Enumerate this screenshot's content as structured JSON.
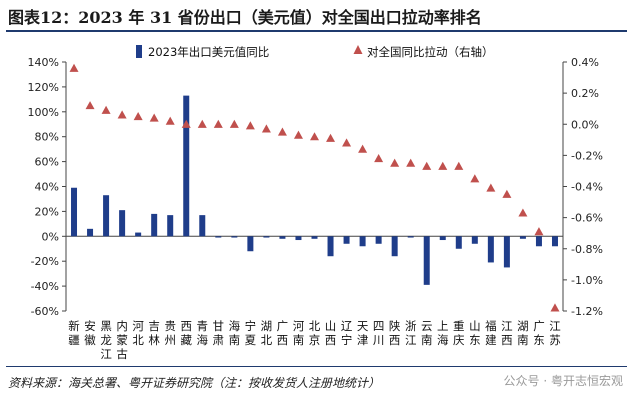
{
  "page": {
    "title": "图表12：2023 年 31 省份出口（美元值）对全国出口拉动率排名",
    "source": "资料来源：海关总署、粤开证券研究院（注：按收发货人注册地统计）",
    "watermark": "公众号 · 粤开志恒宏观"
  },
  "chart_data": {
    "type": "bar",
    "categories": [
      "新疆",
      "安徽",
      "黑龙江",
      "内蒙古",
      "河北",
      "吉林",
      "贵州",
      "西藏",
      "青海",
      "甘肃",
      "海南",
      "宁夏",
      "湖北",
      "广西",
      "河南",
      "北京",
      "山西",
      "辽宁",
      "天津",
      "四川",
      "陕西",
      "浙江",
      "云南",
      "上海",
      "重庆",
      "山东",
      "福建",
      "江西",
      "湖南",
      "广东",
      "江苏"
    ],
    "series": [
      {
        "name": "2023年出口美元值同比",
        "axis": "left",
        "type": "bar",
        "color": "#1f3d8a",
        "values": [
          39,
          6,
          33,
          21,
          3,
          18,
          17,
          113,
          17,
          -1,
          -1,
          -12,
          -1,
          -2,
          -3,
          -2,
          -16,
          -6,
          -8,
          -6,
          -16,
          -1,
          -39,
          -3,
          -10,
          -6,
          -21,
          -25,
          -2,
          -8,
          -8
        ]
      },
      {
        "name": "对全国同比拉动（右轴）",
        "axis": "right",
        "type": "scatter",
        "color": "#c0504d",
        "values": [
          0.36,
          0.12,
          0.09,
          0.06,
          0.05,
          0.04,
          0.02,
          0.0,
          0.0,
          0.0,
          0.0,
          -0.01,
          -0.03,
          -0.05,
          -0.07,
          -0.08,
          -0.09,
          -0.12,
          -0.16,
          -0.22,
          -0.25,
          -0.25,
          -0.27,
          -0.27,
          -0.27,
          -0.35,
          -0.41,
          -0.45,
          -0.57,
          -0.69,
          -1.18
        ]
      }
    ],
    "y_left": {
      "min": -60,
      "max": 140,
      "step": 20,
      "ticks": [
        "-60%",
        "-40%",
        "-20%",
        "0%",
        "20%",
        "40%",
        "60%",
        "80%",
        "100%",
        "120%",
        "140%"
      ]
    },
    "y_right": {
      "min": -1.2,
      "max": 0.4,
      "step": 0.2,
      "ticks": [
        "-1.2%",
        "-1.0%",
        "-0.8%",
        "-0.6%",
        "-0.4%",
        "-0.2%",
        "0.0%",
        "0.2%",
        "0.4%"
      ]
    },
    "legend_position": "top-center",
    "grid": false
  }
}
